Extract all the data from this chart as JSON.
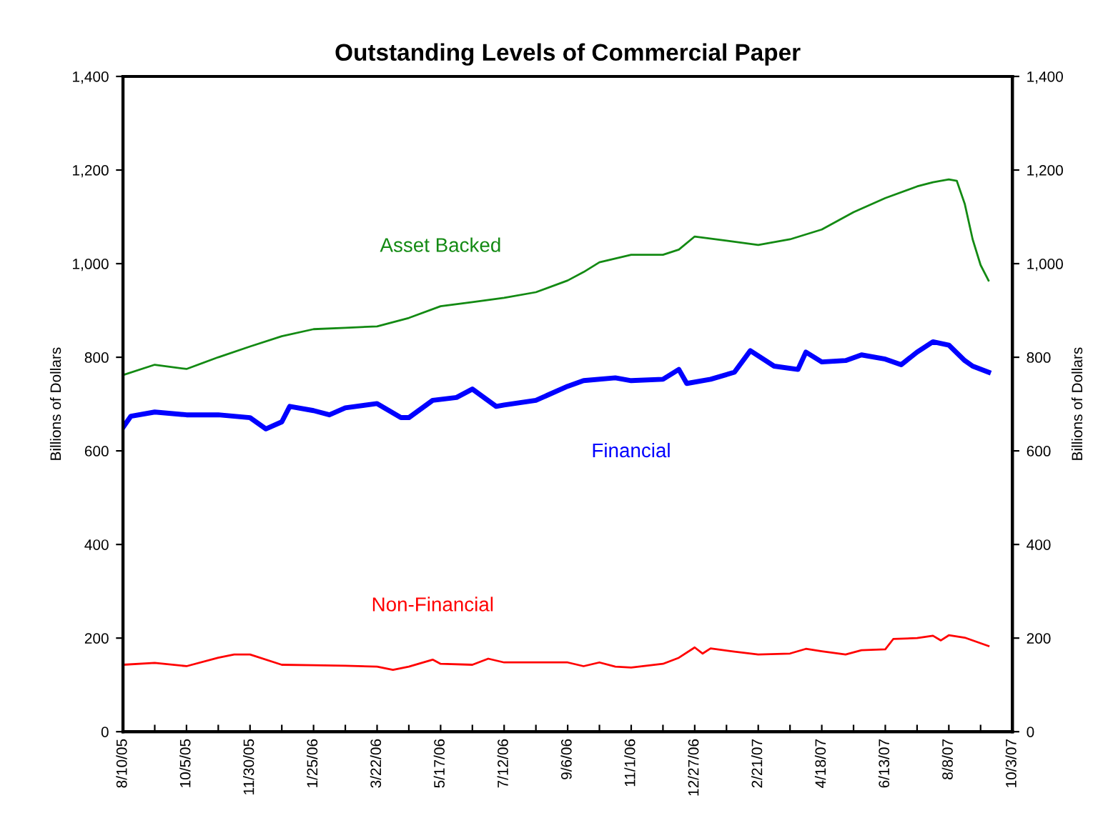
{
  "chart_data": {
    "type": "line",
    "title": "Outstanding Levels of Commercial Paper",
    "ylabel": "Billions of Dollars",
    "y2label": "Billions of Dollars",
    "series": [
      {
        "name": "Asset Backed",
        "color": "#138a13",
        "x": [
          "2005-08-10",
          "2005-09-07",
          "2005-10-05",
          "2005-11-02",
          "2005-11-30",
          "2005-12-28",
          "2006-01-25",
          "2006-02-22",
          "2006-03-22",
          "2006-04-19",
          "2006-05-17",
          "2006-06-14",
          "2006-07-12",
          "2006-08-09",
          "2006-09-06",
          "2006-09-20",
          "2006-10-04",
          "2006-11-01",
          "2006-11-29",
          "2006-12-13",
          "2006-12-27",
          "2007-01-24",
          "2007-02-21",
          "2007-03-21",
          "2007-04-18",
          "2007-05-16",
          "2007-06-13",
          "2007-07-11",
          "2007-07-25",
          "2007-08-08",
          "2007-08-15",
          "2007-08-22",
          "2007-08-29",
          "2007-09-05",
          "2007-09-12"
        ],
        "values": [
          762,
          784,
          775,
          800,
          823,
          845,
          860,
          863,
          866,
          884,
          909,
          918,
          927,
          939,
          964,
          982,
          1003,
          1019,
          1019,
          1030,
          1058,
          1049,
          1040,
          1052,
          1073,
          1110,
          1140,
          1165,
          1174,
          1180,
          1177,
          1128,
          1052,
          997,
          964
        ]
      },
      {
        "name": "Financial",
        "color": "#0000ff",
        "x": [
          "2005-08-10",
          "2005-08-17",
          "2005-09-07",
          "2005-10-05",
          "2005-11-02",
          "2005-11-30",
          "2005-12-14",
          "2005-12-28",
          "2006-01-04",
          "2006-01-25",
          "2006-02-08",
          "2006-02-22",
          "2006-03-22",
          "2006-04-12",
          "2006-04-19",
          "2006-05-10",
          "2006-05-31",
          "2006-06-14",
          "2006-07-05",
          "2006-07-12",
          "2006-08-09",
          "2006-09-06",
          "2006-09-20",
          "2006-10-18",
          "2006-11-01",
          "2006-11-29",
          "2006-12-13",
          "2006-12-20",
          "2007-01-10",
          "2007-01-31",
          "2007-02-14",
          "2007-03-07",
          "2007-03-28",
          "2007-04-04",
          "2007-04-18",
          "2007-05-09",
          "2007-05-23",
          "2007-06-13",
          "2007-06-27",
          "2007-07-11",
          "2007-07-25",
          "2007-08-08",
          "2007-08-22",
          "2007-08-29",
          "2007-09-12"
        ],
        "values": [
          650,
          674,
          683,
          677,
          677,
          671,
          647,
          662,
          695,
          686,
          677,
          692,
          701,
          671,
          671,
          708,
          714,
          732,
          695,
          698,
          708,
          738,
          750,
          756,
          750,
          753,
          774,
          744,
          753,
          768,
          814,
          781,
          774,
          811,
          790,
          793,
          805,
          796,
          784,
          811,
          833,
          826,
          793,
          781,
          768
        ]
      },
      {
        "name": "Non-Financial",
        "color": "#ff0000",
        "x": [
          "2005-08-10",
          "2005-09-07",
          "2005-10-05",
          "2005-11-02",
          "2005-11-16",
          "2005-11-30",
          "2005-12-28",
          "2006-01-25",
          "2006-02-22",
          "2006-03-22",
          "2006-04-05",
          "2006-04-19",
          "2006-05-10",
          "2006-05-17",
          "2006-06-14",
          "2006-06-28",
          "2006-07-12",
          "2006-08-09",
          "2006-09-06",
          "2006-09-20",
          "2006-10-04",
          "2006-10-18",
          "2006-11-01",
          "2006-11-29",
          "2006-12-13",
          "2006-12-27",
          "2007-01-03",
          "2007-01-10",
          "2007-01-31",
          "2007-02-21",
          "2007-03-21",
          "2007-04-04",
          "2007-04-18",
          "2007-05-09",
          "2007-05-23",
          "2007-06-13",
          "2007-06-20",
          "2007-07-11",
          "2007-07-25",
          "2007-08-01",
          "2007-08-08",
          "2007-08-22",
          "2007-09-12"
        ],
        "values": [
          143,
          147,
          140,
          158,
          165,
          165,
          143,
          142,
          141,
          139,
          132,
          139,
          154,
          145,
          143,
          156,
          148,
          148,
          148,
          140,
          148,
          139,
          137,
          145,
          158,
          180,
          167,
          178,
          171,
          165,
          167,
          177,
          172,
          165,
          174,
          176,
          198,
          200,
          205,
          195,
          206,
          201,
          183
        ]
      }
    ],
    "xlim": [
      "2005-08-10",
      "2007-10-03"
    ],
    "xticks": [
      {
        "value": "2005-08-10",
        "label": "8/10/05"
      },
      {
        "value": "2005-09-07",
        "label": null
      },
      {
        "value": "2005-10-05",
        "label": "10/5/05"
      },
      {
        "value": "2005-11-02",
        "label": null
      },
      {
        "value": "2005-11-30",
        "label": "11/30/05"
      },
      {
        "value": "2005-12-28",
        "label": null
      },
      {
        "value": "2006-01-25",
        "label": "1/25/06"
      },
      {
        "value": "2006-02-22",
        "label": null
      },
      {
        "value": "2006-03-22",
        "label": "3/22/06"
      },
      {
        "value": "2006-04-19",
        "label": null
      },
      {
        "value": "2006-05-17",
        "label": "5/17/06"
      },
      {
        "value": "2006-06-14",
        "label": null
      },
      {
        "value": "2006-07-12",
        "label": "7/12/06"
      },
      {
        "value": "2006-08-09",
        "label": null
      },
      {
        "value": "2006-09-06",
        "label": "9/6/06"
      },
      {
        "value": "2006-10-04",
        "label": null
      },
      {
        "value": "2006-11-01",
        "label": "11/1/06"
      },
      {
        "value": "2006-11-29",
        "label": null
      },
      {
        "value": "2006-12-27",
        "label": "12/27/06"
      },
      {
        "value": "2007-01-24",
        "label": null
      },
      {
        "value": "2007-02-21",
        "label": "2/21/07"
      },
      {
        "value": "2007-03-21",
        "label": null
      },
      {
        "value": "2007-04-18",
        "label": "4/18/07"
      },
      {
        "value": "2007-05-16",
        "label": null
      },
      {
        "value": "2007-06-13",
        "label": "6/13/07"
      },
      {
        "value": "2007-07-11",
        "label": null
      },
      {
        "value": "2007-08-08",
        "label": "8/8/07"
      },
      {
        "value": "2007-09-05",
        "label": null
      },
      {
        "value": "2007-10-03",
        "label": "10/3/07"
      }
    ],
    "ylim": [
      0,
      1400
    ],
    "yticks": [
      0,
      200,
      400,
      600,
      800,
      {
        "value": 1000,
        "label": "1,000"
      },
      {
        "value": 1200,
        "label": "1,200"
      },
      {
        "value": 1400,
        "label": "1,400"
      }
    ],
    "y2lim": [
      0,
      1400
    ],
    "y2ticks": [
      0,
      200,
      400,
      600,
      800,
      {
        "value": 1000,
        "label": "1,000"
      },
      {
        "value": 1200,
        "label": "1,200"
      },
      {
        "value": 1400,
        "label": "1,400"
      }
    ],
    "grid": false,
    "legend": false,
    "marker": "none",
    "line_style": "solid"
  }
}
